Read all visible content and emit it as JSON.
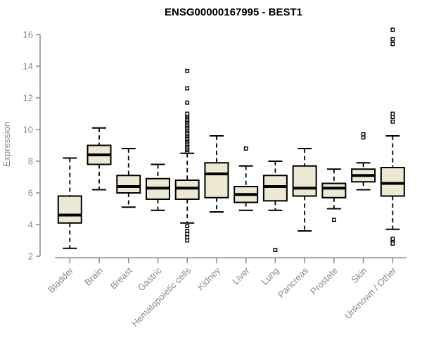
{
  "chart_data": {
    "type": "boxplot",
    "title": "ENSG00000167995 - BEST1",
    "xlabel": "",
    "ylabel": "Expression",
    "ylim": [
      2,
      16
    ],
    "yticks": [
      2,
      4,
      6,
      8,
      10,
      12,
      14,
      16
    ],
    "grid": false,
    "legend": "none",
    "colors": {
      "box_fill": "#EDE8D1",
      "box_border": "#000000",
      "median": "#000000",
      "whisker": "#000000",
      "outlier": "#000000",
      "axis": "#8f8f8f",
      "tick_text": "#8a8a8a",
      "title_text": "#000000"
    },
    "categories": [
      "Bladder",
      "Brain",
      "Breast",
      "Gastric",
      "Hematopoietic cells",
      "Kidney",
      "Liver",
      "Lung",
      "Pancreas",
      "Prostate",
      "Skin",
      "Unknown / Other"
    ],
    "series": [
      {
        "category": "Bladder",
        "whisker_low": 2.5,
        "q1": 4.1,
        "median": 4.6,
        "q3": 5.8,
        "whisker_high": 8.2,
        "outliers": []
      },
      {
        "category": "Brain",
        "whisker_low": 6.2,
        "q1": 7.8,
        "median": 8.4,
        "q3": 9.0,
        "whisker_high": 10.1,
        "outliers": []
      },
      {
        "category": "Breast",
        "whisker_low": 5.1,
        "q1": 6.0,
        "median": 6.4,
        "q3": 7.1,
        "whisker_high": 8.8,
        "outliers": []
      },
      {
        "category": "Gastric",
        "whisker_low": 4.9,
        "q1": 5.6,
        "median": 6.3,
        "q3": 6.9,
        "whisker_high": 7.8,
        "outliers": []
      },
      {
        "category": "Hematopoietic cells",
        "whisker_low": 4.1,
        "q1": 5.6,
        "median": 6.3,
        "q3": 6.8,
        "whisker_high": 8.5,
        "outliers": [
          3.0,
          3.2,
          3.4,
          3.6,
          3.9,
          8.6,
          8.7,
          8.8,
          8.9,
          9.0,
          9.1,
          9.2,
          9.3,
          9.4,
          9.5,
          9.6,
          9.7,
          9.8,
          9.9,
          10.0,
          10.1,
          10.2,
          10.3,
          10.4,
          10.5,
          10.6,
          10.7,
          10.8,
          10.9,
          11.0,
          11.7,
          12.6,
          13.7
        ]
      },
      {
        "category": "Kidney",
        "whisker_low": 4.8,
        "q1": 5.7,
        "median": 7.2,
        "q3": 7.9,
        "whisker_high": 9.6,
        "outliers": []
      },
      {
        "category": "Liver",
        "whisker_low": 4.9,
        "q1": 5.4,
        "median": 5.9,
        "q3": 6.4,
        "whisker_high": 7.7,
        "outliers": [
          8.8
        ]
      },
      {
        "category": "Lung",
        "whisker_low": 4.9,
        "q1": 5.5,
        "median": 6.4,
        "q3": 7.1,
        "whisker_high": 8.0,
        "outliers": [
          2.4
        ]
      },
      {
        "category": "Pancreas",
        "whisker_low": 3.6,
        "q1": 5.8,
        "median": 6.3,
        "q3": 7.7,
        "whisker_high": 8.8,
        "outliers": []
      },
      {
        "category": "Prostate",
        "whisker_low": 5.0,
        "q1": 5.7,
        "median": 6.3,
        "q3": 6.6,
        "whisker_high": 7.5,
        "outliers": [
          4.3
        ]
      },
      {
        "category": "Skin",
        "whisker_low": 6.2,
        "q1": 6.7,
        "median": 7.1,
        "q3": 7.5,
        "whisker_high": 7.9,
        "outliers": [
          9.5,
          9.7
        ]
      },
      {
        "category": "Unknown / Other",
        "whisker_low": 3.7,
        "q1": 5.8,
        "median": 6.6,
        "q3": 7.6,
        "whisker_high": 9.6,
        "outliers": [
          2.8,
          3.0,
          3.1,
          10.5,
          10.8,
          11.0,
          15.4,
          15.7,
          16.3
        ]
      }
    ]
  }
}
